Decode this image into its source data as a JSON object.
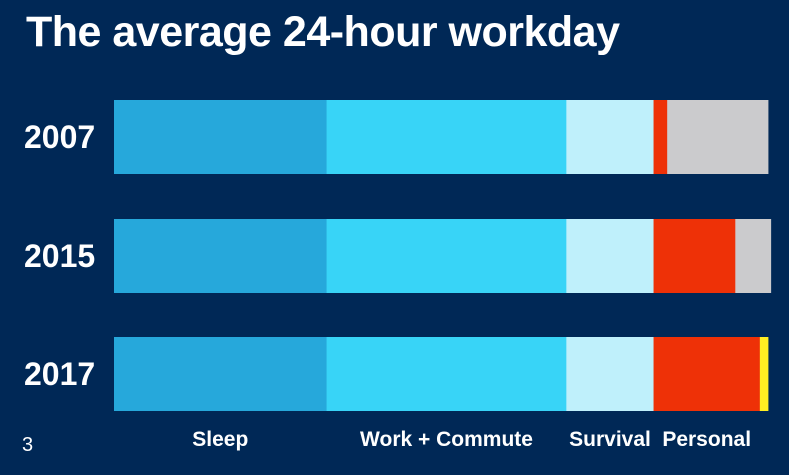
{
  "slide": {
    "title": "The average 24-hour workday",
    "page_number": "3"
  },
  "chart_data": {
    "type": "bar",
    "orientation": "horizontal",
    "stacked": true,
    "title": "The average 24-hour workday",
    "categories": [
      "2007",
      "2015",
      "2017"
    ],
    "xlim": [
      0,
      24
    ],
    "unit": "hours",
    "segment_labels": [
      "Sleep",
      "Work + Commute",
      "Survival",
      "Personal",
      "",
      ""
    ],
    "series": [
      {
        "name": "Sleep",
        "color": "#26A8DB",
        "values": [
          7.8,
          7.8,
          7.8
        ]
      },
      {
        "name": "Work + Commute",
        "color": "#38D4F7",
        "values": [
          8.8,
          8.8,
          8.8
        ]
      },
      {
        "name": "Survival",
        "color": "#BFF0FB",
        "values": [
          3.2,
          3.2,
          3.2
        ]
      },
      {
        "name": "Personal",
        "color": "#EE3107",
        "values": [
          0.5,
          3.0,
          3.9
        ]
      },
      {
        "name": "",
        "color": "#CBCBCD",
        "values": [
          3.7,
          1.3,
          0.0
        ]
      },
      {
        "name": "",
        "color": "#FFEE22",
        "values": [
          0.0,
          0.0,
          0.3
        ]
      }
    ],
    "grid": false,
    "legend": "bottom"
  }
}
